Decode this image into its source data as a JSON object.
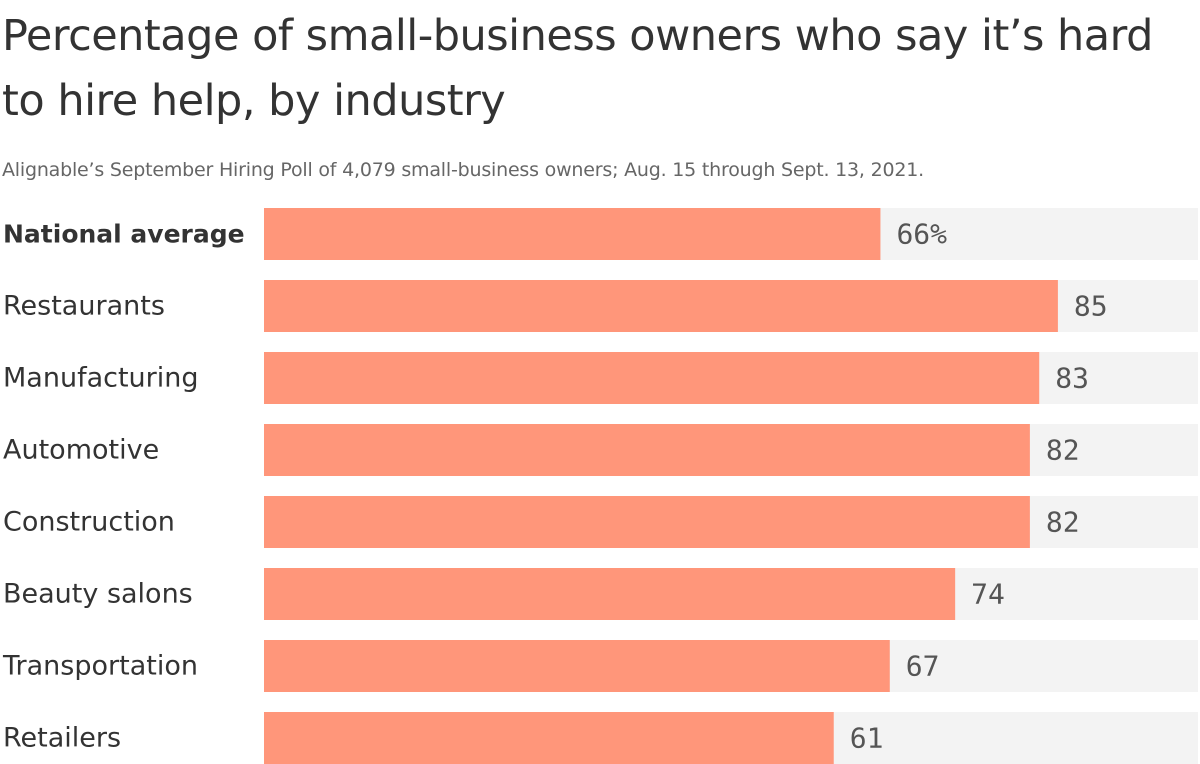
{
  "title": "Percentage of small‑business owners who say it’s hard to hire help, by industry",
  "subtitle": "Alignable’s September Hiring Poll of 4,079 small‑business owners; Aug. 15 through Sept. 13, 2021.",
  "colors": {
    "bar": "#ff967a",
    "track": "#f3f3f3",
    "text": "#333333",
    "subtitle": "#666666",
    "value": "#555555"
  },
  "chart_data": {
    "type": "bar",
    "orientation": "horizontal",
    "title": "Percentage of small‑business owners who say it’s hard to hire help, by industry",
    "subtitle": "Alignable’s September Hiring Poll of 4,079 small‑business owners; Aug. 15 through Sept. 13, 2021.",
    "categories": [
      "National average",
      "Restaurants",
      "Manufacturing",
      "Automotive",
      "Construction",
      "Beauty salons",
      "Transportation",
      "Retailers"
    ],
    "values": [
      66,
      85,
      83,
      82,
      82,
      74,
      67,
      61
    ],
    "value_labels": [
      "66%",
      "85",
      "83",
      "82",
      "82",
      "74",
      "67",
      "61"
    ],
    "emphasized_category": "National average",
    "xlim": [
      0,
      100
    ],
    "grid": false,
    "legend": "none"
  }
}
